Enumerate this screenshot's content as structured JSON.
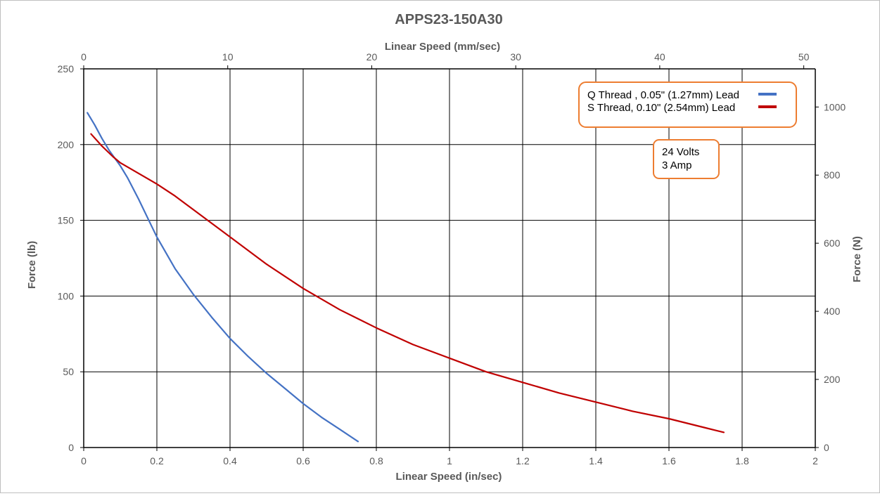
{
  "chart_data": {
    "type": "line",
    "title": "APPS23-150A30",
    "xlabel": "Linear Speed (in/sec)",
    "ylabel": "Force (lb)",
    "x2label": "Linear Speed (mm/sec)",
    "y2label": "Force (N)",
    "xlim": [
      0,
      2
    ],
    "ylim": [
      0,
      250
    ],
    "x2lim": [
      0,
      50.8
    ],
    "y2lim": [
      0,
      1112
    ],
    "x_ticks": [
      "0",
      "0.2",
      "0.4",
      "0.6",
      "0.8",
      "1",
      "1.2",
      "1.4",
      "1.6",
      "1.8",
      "2"
    ],
    "y_ticks": [
      "0",
      "50",
      "100",
      "150",
      "200",
      "250"
    ],
    "x2_ticks": [
      "0",
      "10",
      "20",
      "30",
      "40",
      "50"
    ],
    "y2_ticks": [
      "0",
      "200",
      "400",
      "600",
      "800",
      "1000"
    ],
    "grid": true,
    "legend_position": "top-right",
    "series": [
      {
        "name": "Q Thread , 0.05\" (1.27mm) Lead",
        "color": "#4472C4",
        "points": [
          [
            0.01,
            221
          ],
          [
            0.03,
            213
          ],
          [
            0.05,
            204
          ],
          [
            0.07,
            196
          ],
          [
            0.1,
            186
          ],
          [
            0.12,
            178
          ],
          [
            0.15,
            164
          ],
          [
            0.18,
            149
          ],
          [
            0.2,
            139
          ],
          [
            0.25,
            118
          ],
          [
            0.3,
            101
          ],
          [
            0.35,
            86
          ],
          [
            0.4,
            72
          ],
          [
            0.45,
            60
          ],
          [
            0.5,
            49
          ],
          [
            0.55,
            39
          ],
          [
            0.6,
            29
          ],
          [
            0.65,
            20
          ],
          [
            0.7,
            12
          ],
          [
            0.75,
            4
          ]
        ]
      },
      {
        "name": "S Thread, 0.10\"  (2.54mm) Lead",
        "color": "#C00000",
        "points": [
          [
            0.02,
            207
          ],
          [
            0.05,
            199
          ],
          [
            0.08,
            192
          ],
          [
            0.1,
            188
          ],
          [
            0.15,
            181
          ],
          [
            0.2,
            174
          ],
          [
            0.25,
            166
          ],
          [
            0.3,
            157
          ],
          [
            0.35,
            148
          ],
          [
            0.4,
            139
          ],
          [
            0.5,
            121
          ],
          [
            0.6,
            105
          ],
          [
            0.7,
            91
          ],
          [
            0.8,
            79
          ],
          [
            0.9,
            68
          ],
          [
            1.0,
            59
          ],
          [
            1.1,
            50
          ],
          [
            1.2,
            43
          ],
          [
            1.3,
            36
          ],
          [
            1.4,
            30
          ],
          [
            1.5,
            24
          ],
          [
            1.6,
            19
          ],
          [
            1.7,
            13
          ],
          [
            1.75,
            10
          ]
        ]
      }
    ],
    "annotation": [
      "24 Volts",
      "3 Amp"
    ]
  },
  "colors": {
    "legend_border": "#ED7D31",
    "axis_text": "#595959",
    "grid": "#000000"
  }
}
